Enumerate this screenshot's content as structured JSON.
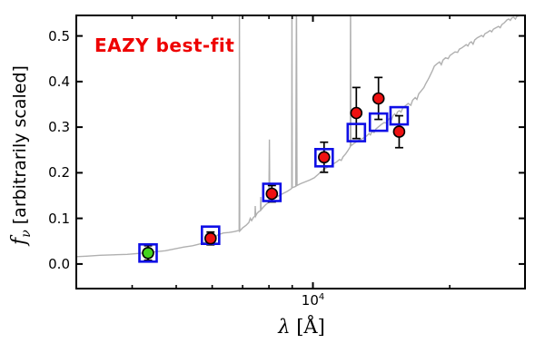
{
  "figure": {
    "annotation": "EAZY best-fit",
    "annotation_color": "#ee0000",
    "ylabel": {
      "symbol": "f",
      "subscript": "ν",
      "rest": " [arbitrarily scaled]"
    },
    "xlabel": {
      "symbol": "λ",
      "open": " [",
      "unit": "Å",
      "close": "]"
    },
    "xtick": {
      "base": "10",
      "exponent": "4"
    }
  },
  "chart_data": {
    "type": "line",
    "title": "",
    "xlabel": "lambda [Angstrom]",
    "ylabel": "f_nu [arbitrarily scaled]",
    "x_scale": "log",
    "xlim": [
      3013,
      29300
    ],
    "ylim": [
      -0.054,
      0.545
    ],
    "x_major_ticks": [
      10000
    ],
    "x_minor_ticks": [
      4000,
      5000,
      6000,
      7000,
      8000,
      9000,
      20000
    ],
    "y_ticks": [
      0.0,
      0.1,
      0.2,
      0.3,
      0.4,
      0.5
    ],
    "grid": false,
    "legend": "none",
    "annotation": "EAZY best-fit",
    "colors": {
      "spectrum": "#b0b0b0",
      "observed": "#ee1111",
      "observed_alt": "#44d41c",
      "model": "#0f0fe6",
      "errorbar": "#000000",
      "annotation": "#ee0000"
    },
    "series": [
      {
        "name": "best-fit template spectrum",
        "type": "line",
        "color": "#b0b0b0",
        "points": [
          [
            3013,
            0.016
          ],
          [
            3170,
            0.017
          ],
          [
            3396,
            0.019
          ],
          [
            3639,
            0.02
          ],
          [
            3899,
            0.021
          ],
          [
            4121,
            0.023
          ],
          [
            4335,
            0.025
          ],
          [
            4519,
            0.027
          ],
          [
            4732,
            0.029
          ],
          [
            4955,
            0.033
          ],
          [
            5188,
            0.037
          ],
          [
            5433,
            0.04
          ],
          [
            5636,
            0.044
          ],
          [
            5848,
            0.049
          ],
          [
            6012,
            0.054
          ],
          [
            6180,
            0.064
          ],
          [
            6353,
            0.068
          ],
          [
            6531,
            0.069
          ],
          [
            6714,
            0.071
          ],
          [
            6839,
            0.073
          ],
          [
            6880,
            0.073
          ],
          [
            6888,
            0.6
          ],
          [
            6900,
            0.072
          ],
          [
            6998,
            0.079
          ],
          [
            7128,
            0.085
          ],
          [
            7227,
            0.091
          ],
          [
            7278,
            0.1
          ],
          [
            7328,
            0.095
          ],
          [
            7396,
            0.102
          ],
          [
            7454,
            0.105
          ],
          [
            7464,
            0.127
          ],
          [
            7482,
            0.105
          ],
          [
            7534,
            0.111
          ],
          [
            7603,
            0.115
          ],
          [
            7666,
            0.117
          ],
          [
            7674,
            0.147
          ],
          [
            7695,
            0.119
          ],
          [
            7780,
            0.125
          ],
          [
            7889,
            0.131
          ],
          [
            7998,
            0.135
          ],
          [
            8018,
            0.273
          ],
          [
            8035,
            0.136
          ],
          [
            8147,
            0.141
          ],
          [
            8298,
            0.146
          ],
          [
            8452,
            0.151
          ],
          [
            8610,
            0.155
          ],
          [
            8770,
            0.159
          ],
          [
            8933,
            0.164
          ],
          [
            8980,
            0.166
          ],
          [
            8988,
            0.6
          ],
          [
            9000,
            0.167
          ],
          [
            9166,
            0.17
          ],
          [
            9200,
            0.6
          ],
          [
            9225,
            0.172
          ],
          [
            9397,
            0.176
          ],
          [
            9616,
            0.18
          ],
          [
            9840,
            0.184
          ],
          [
            10069,
            0.189
          ],
          [
            10257,
            0.196
          ],
          [
            10381,
            0.201
          ],
          [
            10525,
            0.206
          ],
          [
            10672,
            0.21
          ],
          [
            10871,
            0.214
          ],
          [
            11075,
            0.219
          ],
          [
            11282,
            0.224
          ],
          [
            11439,
            0.229
          ],
          [
            11545,
            0.227
          ],
          [
            11652,
            0.235
          ],
          [
            11814,
            0.242
          ],
          [
            11924,
            0.248
          ],
          [
            12034,
            0.254
          ],
          [
            12080,
            0.257
          ],
          [
            12100,
            0.6
          ],
          [
            12120,
            0.259
          ],
          [
            12259,
            0.263
          ],
          [
            12430,
            0.267
          ],
          [
            12603,
            0.271
          ],
          [
            12780,
            0.274
          ],
          [
            12958,
            0.277
          ],
          [
            13139,
            0.281
          ],
          [
            13292,
            0.286
          ],
          [
            13384,
            0.283
          ],
          [
            13508,
            0.291
          ],
          [
            13633,
            0.288
          ],
          [
            13760,
            0.296
          ],
          [
            13952,
            0.301
          ],
          [
            14147,
            0.306
          ],
          [
            14345,
            0.31
          ],
          [
            14531,
            0.309
          ],
          [
            14664,
            0.317
          ],
          [
            14798,
            0.321
          ],
          [
            14900,
            0.317
          ],
          [
            15022,
            0.326
          ],
          [
            15139,
            0.329
          ],
          [
            15242,
            0.325
          ],
          [
            15346,
            0.333
          ],
          [
            15485,
            0.336
          ],
          [
            15626,
            0.333
          ],
          [
            15768,
            0.342
          ],
          [
            15983,
            0.347
          ],
          [
            16201,
            0.352
          ],
          [
            16422,
            0.348
          ],
          [
            16570,
            0.359
          ],
          [
            16793,
            0.365
          ],
          [
            16943,
            0.361
          ],
          [
            17094,
            0.373
          ],
          [
            17322,
            0.38
          ],
          [
            17554,
            0.387
          ],
          [
            17709,
            0.395
          ],
          [
            17866,
            0.402
          ],
          [
            18023,
            0.409
          ],
          [
            18182,
            0.417
          ],
          [
            18343,
            0.425
          ],
          [
            18505,
            0.434
          ],
          [
            18750,
            0.439
          ],
          [
            18998,
            0.443
          ],
          [
            19165,
            0.437
          ],
          [
            19333,
            0.447
          ],
          [
            19587,
            0.452
          ],
          [
            19845,
            0.45
          ],
          [
            20018,
            0.457
          ],
          [
            20281,
            0.461
          ],
          [
            20548,
            0.465
          ],
          [
            20818,
            0.464
          ],
          [
            21000,
            0.471
          ],
          [
            21276,
            0.474
          ],
          [
            21556,
            0.478
          ],
          [
            21744,
            0.481
          ],
          [
            21933,
            0.478
          ],
          [
            22124,
            0.485
          ],
          [
            22317,
            0.487
          ],
          [
            22511,
            0.482
          ],
          [
            22707,
            0.491
          ],
          [
            23003,
            0.496
          ],
          [
            23303,
            0.499
          ],
          [
            23505,
            0.501
          ],
          [
            23708,
            0.498
          ],
          [
            23913,
            0.505
          ],
          [
            24224,
            0.508
          ],
          [
            24539,
            0.512
          ],
          [
            24750,
            0.509
          ],
          [
            24964,
            0.515
          ],
          [
            25287,
            0.518
          ],
          [
            25615,
            0.521
          ],
          [
            25835,
            0.518
          ],
          [
            26057,
            0.525
          ],
          [
            26394,
            0.529
          ],
          [
            26735,
            0.535
          ],
          [
            26964,
            0.537
          ],
          [
            27195,
            0.534
          ],
          [
            27428,
            0.54
          ],
          [
            27663,
            0.541
          ],
          [
            27900,
            0.537
          ],
          [
            28139,
            0.543
          ],
          [
            28800,
            0.545
          ],
          [
            29300,
            0.548
          ]
        ]
      },
      {
        "name": "model photometry",
        "type": "scatter",
        "marker": "open-square",
        "color": "#0f0fe6",
        "points": [
          [
            4335,
            0.024
          ],
          [
            5950,
            0.063
          ],
          [
            8120,
            0.157
          ],
          [
            10580,
            0.233
          ],
          [
            12460,
            0.288
          ],
          [
            13940,
            0.311
          ],
          [
            15480,
            0.325
          ]
        ]
      },
      {
        "name": "observed photometry",
        "type": "scatter",
        "marker": "filled-circle",
        "color": "#ee1111",
        "points": [
          {
            "x": 4335,
            "y": 0.024,
            "yerr": 0.016,
            "color": "#44d41c"
          },
          {
            "x": 5950,
            "y": 0.056,
            "yerr": 0.014,
            "color": "#ee1111"
          },
          {
            "x": 8120,
            "y": 0.154,
            "yerr": 0.018,
            "color": "#ee1111"
          },
          {
            "x": 10580,
            "y": 0.234,
            "yerr": 0.033,
            "color": "#ee1111"
          },
          {
            "x": 12460,
            "y": 0.331,
            "yerr": 0.056,
            "color": "#ee1111"
          },
          {
            "x": 13940,
            "y": 0.363,
            "yerr": 0.046,
            "color": "#ee1111"
          },
          {
            "x": 15480,
            "y": 0.29,
            "yerr": 0.035,
            "color": "#ee1111"
          }
        ]
      }
    ]
  }
}
